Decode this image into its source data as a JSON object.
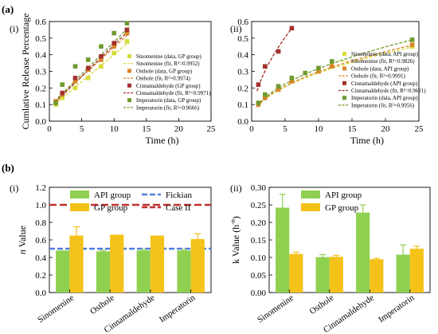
{
  "figure": {
    "panel_a": "(a)",
    "panel_b": "(b)",
    "sub_i": "(i)",
    "sub_ii": "(ii)"
  },
  "colors": {
    "sin": "#d6dc3a",
    "ost": "#d8862a",
    "cin": "#a3312b",
    "imp": "#6f9a2e",
    "api": "#8fd050",
    "gp": "#f5c21a",
    "fickian": "#4f7fd9",
    "case2": "#c03030"
  },
  "chart_data": [
    {
      "id": "a-i",
      "type": "scatter",
      "title": "",
      "xlabel": "Time (h)",
      "ylabel": "Cumlative Release Percentage",
      "xlim": [
        0,
        25
      ],
      "ylim": [
        0,
        0.6
      ],
      "xticks": [
        "0",
        "5",
        "10",
        "15",
        "20",
        "25"
      ],
      "yticks": [
        "0.0",
        "0.1",
        "0.2",
        "0.3",
        "0.4",
        "0.5",
        "0.6"
      ],
      "grid": false,
      "legend_position": "lower-right",
      "series": [
        {
          "name": "Sinomenine (data, GP group)",
          "key": "sin",
          "x": [
            1,
            2,
            4,
            6,
            8,
            10,
            12
          ],
          "y": [
            0.1,
            0.14,
            0.2,
            0.26,
            0.33,
            0.41,
            0.48
          ],
          "fit_name": "Sinomenine (fit, R²=0.9952)",
          "fit": [
            [
              0.8,
              0.1
            ],
            [
              12.4,
              0.48
            ]
          ]
        },
        {
          "name": "Osthole (data, GP group)",
          "key": "ost",
          "x": [
            1,
            2,
            4,
            6,
            8,
            10,
            12
          ],
          "y": [
            0.12,
            0.16,
            0.24,
            0.31,
            0.37,
            0.45,
            0.53
          ],
          "fit_name": "Osthole (fit, R²=0.9974)",
          "fit": [
            [
              0.8,
              0.12
            ],
            [
              12.4,
              0.53
            ]
          ]
        },
        {
          "name": "Cinnamaldehyde (GP group)",
          "key": "cin",
          "x": [
            1,
            2,
            4,
            6,
            8,
            10,
            12
          ],
          "y": [
            0.11,
            0.17,
            0.26,
            0.32,
            0.39,
            0.47,
            0.55
          ],
          "fit_name": "Cinnamaldehyde (fit, R²=0.9971)",
          "fit": [
            [
              0.8,
              0.11
            ],
            [
              12.4,
              0.55
            ]
          ]
        },
        {
          "name": "Imperatorin (data, GP group)",
          "key": "imp",
          "x": [
            1,
            2,
            4,
            6,
            8,
            10,
            12
          ],
          "y": [
            0.11,
            0.22,
            0.33,
            0.37,
            0.45,
            0.53,
            0.59
          ],
          "fit_name": "Imperatorin (fit, R²=0.9666)",
          "fit": [
            [
              0.8,
              0.12
            ],
            [
              12.4,
              0.57
            ]
          ]
        }
      ]
    },
    {
      "id": "a-ii",
      "type": "scatter",
      "title": "",
      "xlabel": "Time (h)",
      "ylabel": "",
      "xlim": [
        0,
        25
      ],
      "ylim": [
        0,
        0.6
      ],
      "xticks": [
        "0",
        "5",
        "10",
        "15",
        "20",
        "25"
      ],
      "yticks": [
        "0.0",
        "0.1",
        "0.2",
        "0.3",
        "0.4",
        "0.5",
        "0.6"
      ],
      "grid": false,
      "legend_position": "lower-right",
      "series": [
        {
          "name": "Sinomenine (data, API group)",
          "key": "sin",
          "x": [
            1,
            2,
            4,
            6,
            10,
            12,
            24
          ],
          "y": [
            0.11,
            0.15,
            0.2,
            0.25,
            0.3,
            0.33,
            0.45
          ],
          "fit_name": "Sinomenine (fit, R²=0.9826)",
          "fit_curve": {
            "a": 0.094,
            "b": 0.49,
            "x0": 0.8,
            "x1": 24
          }
        },
        {
          "name": "Osthole (data, API group)",
          "key": "ost",
          "x": [
            1,
            2,
            4,
            6,
            10,
            12,
            24
          ],
          "y": [
            0.1,
            0.14,
            0.19,
            0.24,
            0.3,
            0.33,
            0.46
          ],
          "fit_name": "Osthole (fit, R²=0.9991)",
          "fit_curve": {
            "a": 0.095,
            "b": 0.495,
            "x0": 0.8,
            "x1": 24
          }
        },
        {
          "name": "Cinnamaldehyde (API group)",
          "key": "cin",
          "x": [
            1,
            2,
            4,
            6
          ],
          "y": [
            0.22,
            0.33,
            0.42,
            0.56
          ],
          "fit_name": "Cinnamaldehyde (fit, R²=0.9621)",
          "fit_curve": {
            "a": 0.205,
            "b": 0.56,
            "x0": 0.8,
            "x1": 6
          }
        },
        {
          "name": "Imperatorin (data, API group)",
          "key": "imp",
          "x": [
            1,
            2,
            4,
            6,
            8,
            10,
            12,
            24
          ],
          "y": [
            0.11,
            0.16,
            0.21,
            0.26,
            0.29,
            0.32,
            0.36,
            0.49
          ],
          "fit_name": "Imperatorin (fit, R²=0.9956)",
          "fit_curve": {
            "a": 0.1,
            "b": 0.5,
            "x0": 0.8,
            "x1": 24
          }
        }
      ]
    },
    {
      "id": "b-i",
      "type": "bar",
      "title": "",
      "xlabel": "",
      "ylabel": "n Value",
      "ylim": [
        0,
        1.2
      ],
      "yticks": [
        "0.0",
        "0.2",
        "0.4",
        "0.6",
        "0.8",
        "1.0",
        "1.2"
      ],
      "categories": [
        "Sinomenine",
        "Osthole",
        "Cinnamaldehyde",
        "Imperatorin"
      ],
      "legend_position": "top",
      "series": [
        {
          "name": "API group",
          "key": "api",
          "values": [
            0.48,
            0.47,
            0.48,
            0.48
          ],
          "errors": [
            0.0,
            0.01,
            0.01,
            0.01
          ]
        },
        {
          "name": "GP  group",
          "key": "gp",
          "values": [
            0.65,
            0.66,
            0.65,
            0.61
          ],
          "errors": [
            0.1,
            0.0,
            0.0,
            0.06
          ]
        }
      ],
      "reference_lines": [
        {
          "name": "Fickian",
          "key": "fickian",
          "value": 0.5
        },
        {
          "name": "Case II",
          "key": "case2",
          "value": 1.0
        }
      ]
    },
    {
      "id": "b-ii",
      "type": "bar",
      "title": "",
      "xlabel": "",
      "ylabel": "k Value (h",
      "ylabel_sup": "-n",
      "ylabel_end": ")",
      "ylim": [
        0,
        0.3
      ],
      "yticks": [
        "0.00",
        "0.05",
        "0.10",
        "0.15",
        "0.20",
        "0.25",
        "0.30"
      ],
      "categories": [
        "Sinomenine",
        "Osthole",
        "Cinnamaldehyde",
        "Imperatorin"
      ],
      "legend_position": "top",
      "series": [
        {
          "name": "API group",
          "key": "api",
          "values": [
            0.242,
            0.101,
            0.228,
            0.108
          ],
          "errors": [
            0.038,
            0.007,
            0.022,
            0.028
          ]
        },
        {
          "name": "GP group",
          "key": "gp",
          "values": [
            0.11,
            0.102,
            0.095,
            0.125
          ],
          "errors": [
            0.005,
            0.004,
            0.003,
            0.007
          ]
        }
      ]
    }
  ]
}
